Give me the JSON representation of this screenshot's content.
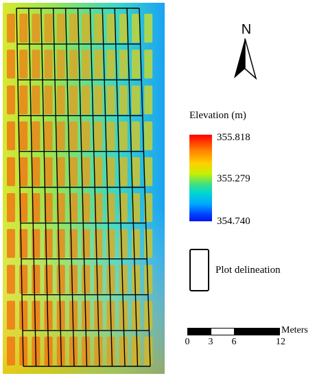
{
  "north_arrow": {
    "letter": "N",
    "icon": "north-arrow-icon"
  },
  "legend": {
    "title": "Elevation (m)",
    "max_label": "355.818",
    "mid_label": "355.279",
    "min_label": "354.740",
    "colors": [
      "#ff0000",
      "#ff8000",
      "#ffd000",
      "#c8f000",
      "#40e080",
      "#00d8d0",
      "#00a8ff",
      "#0040ff"
    ]
  },
  "plot_legend": {
    "label": "Plot delineation"
  },
  "scale_bar": {
    "unit": "Meters",
    "ticks": [
      "0",
      "3",
      "6",
      "12"
    ]
  },
  "plot_grid": {
    "columns": 10,
    "rows": 10
  }
}
